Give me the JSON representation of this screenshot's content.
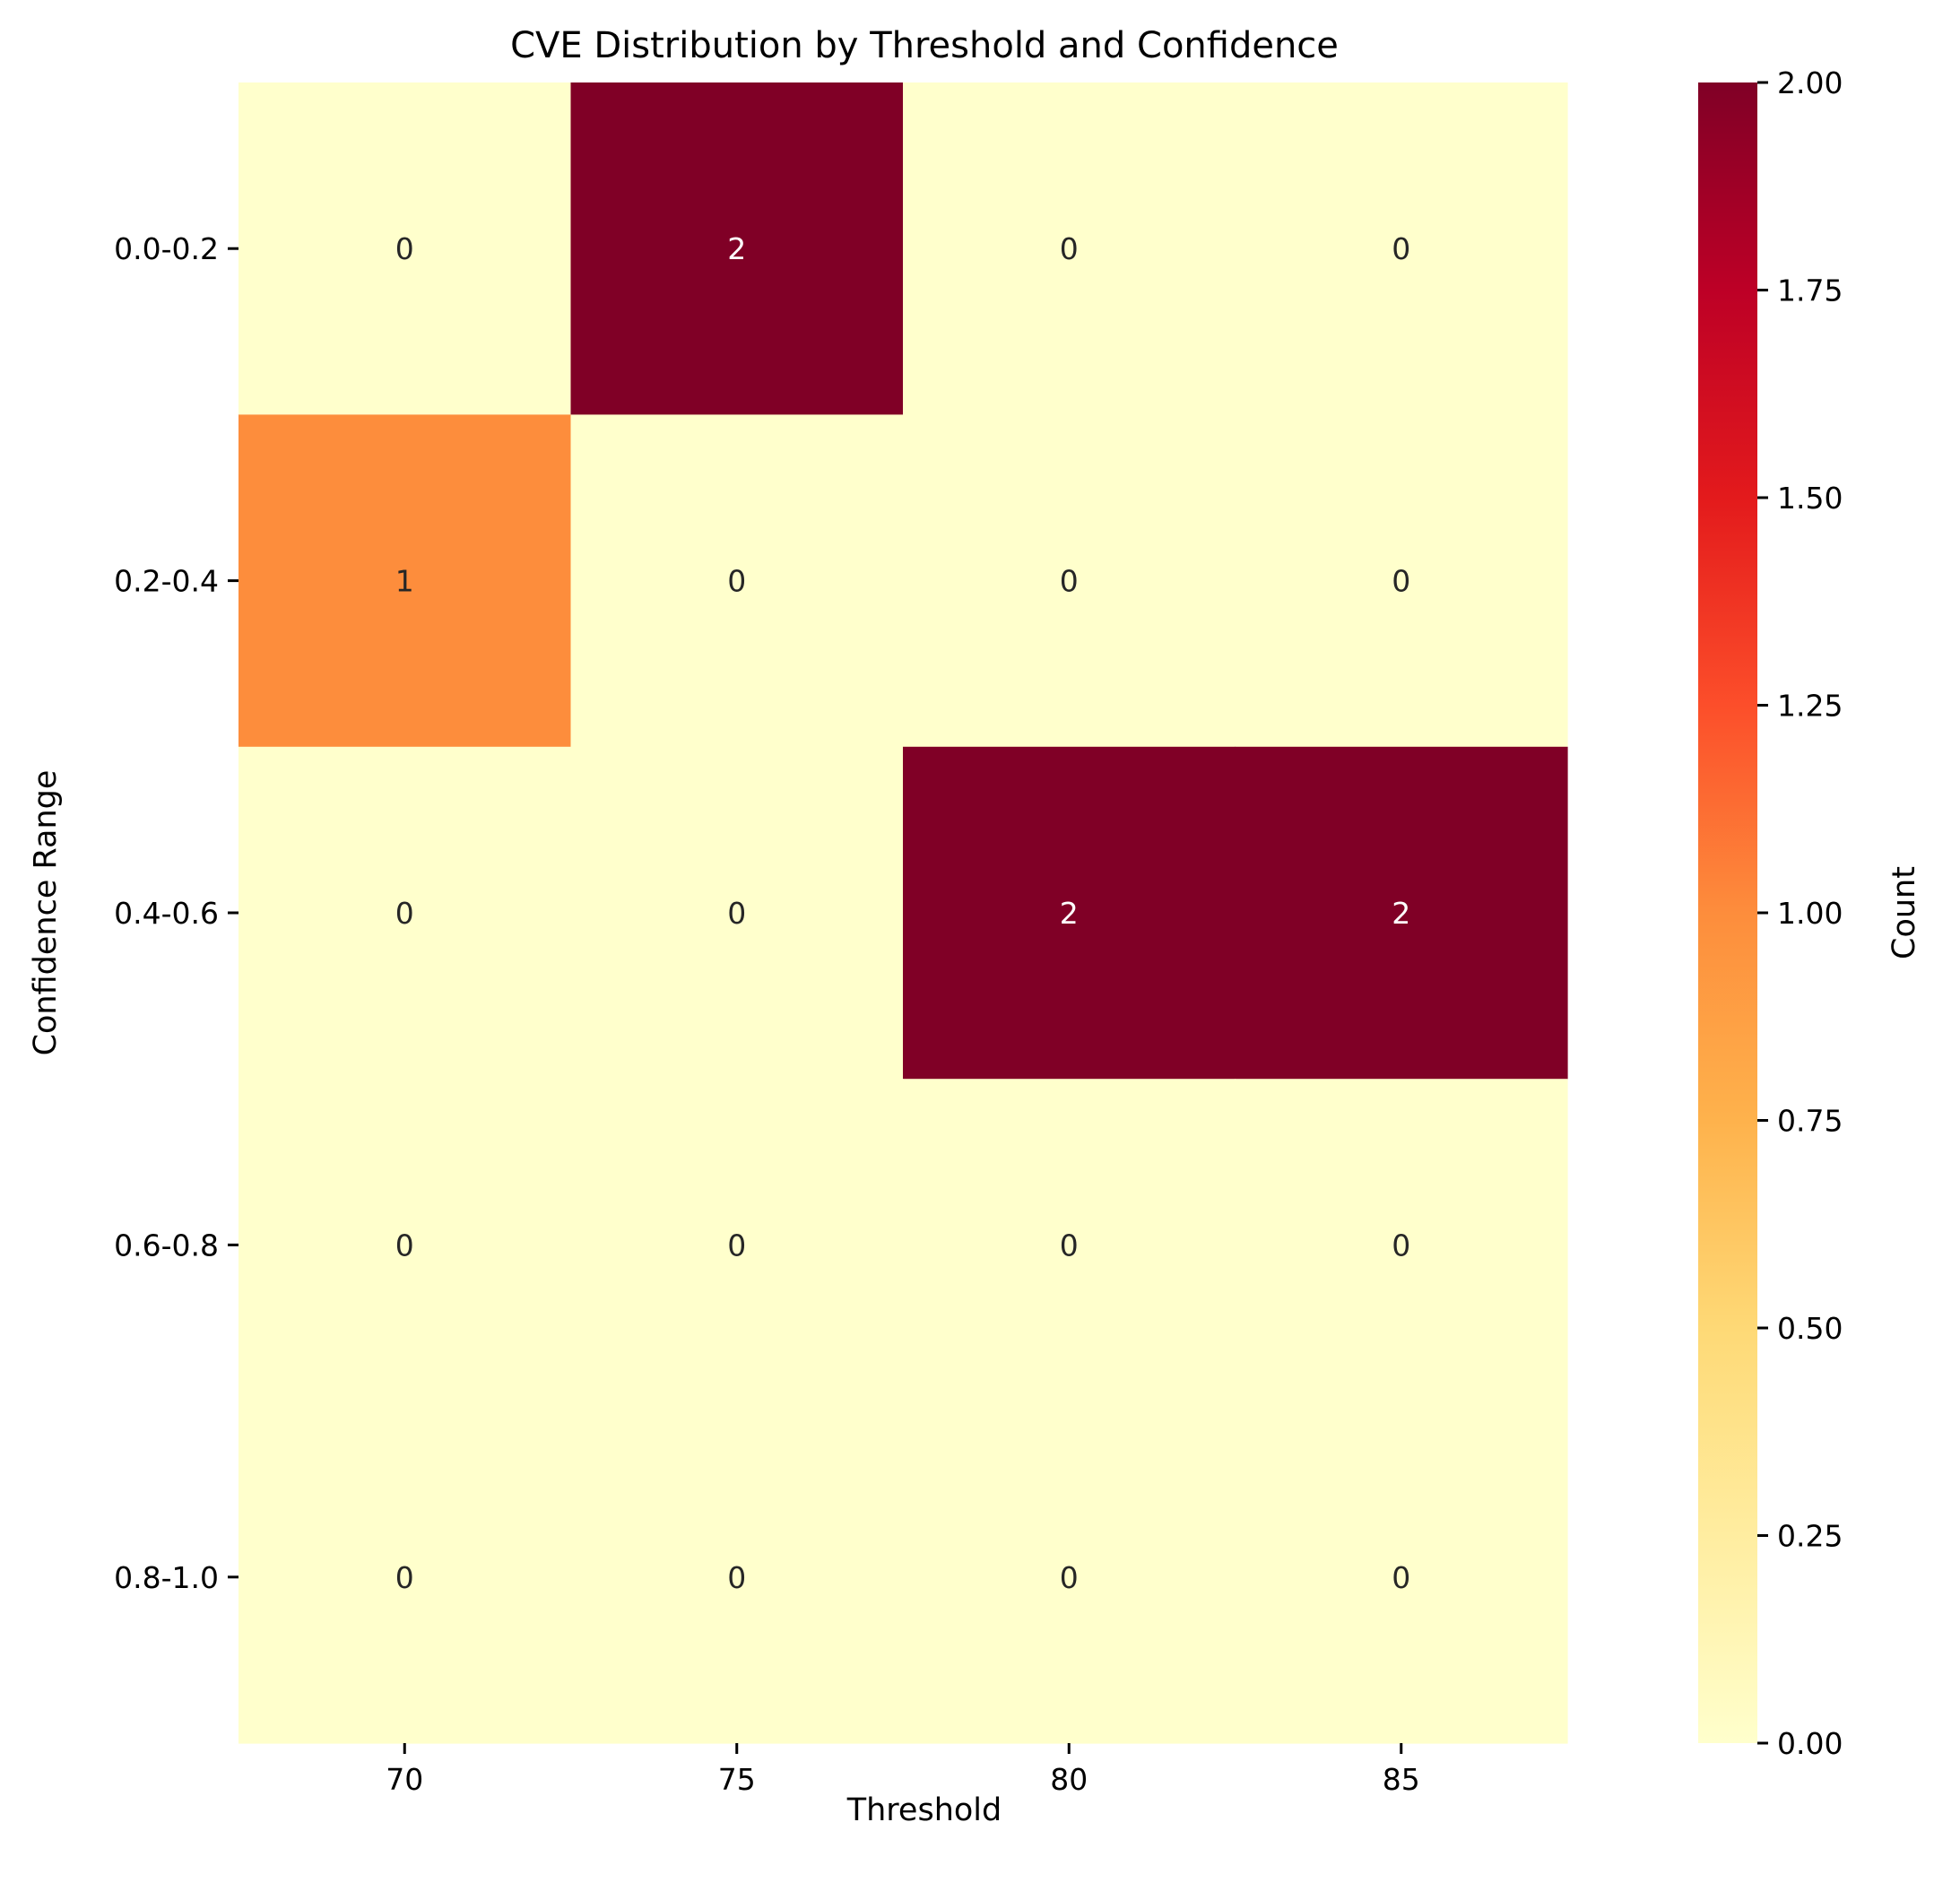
{
  "chart_data": {
    "type": "heatmap",
    "title": "CVE Distribution by Threshold and Confidence",
    "xlabel": "Threshold",
    "ylabel": "Confidence Range",
    "x_categories": [
      "70",
      "75",
      "80",
      "85"
    ],
    "y_categories": [
      "0.0-0.2",
      "0.2-0.4",
      "0.4-0.6",
      "0.6-0.8",
      "0.8-1.0"
    ],
    "values": [
      [
        0,
        2,
        0,
        0
      ],
      [
        1,
        0,
        0,
        0
      ],
      [
        0,
        0,
        2,
        2
      ],
      [
        0,
        0,
        0,
        0
      ],
      [
        0,
        0,
        0,
        0
      ]
    ],
    "colorbar": {
      "label": "Count",
      "range": [
        0,
        2
      ],
      "ticks": [
        "0.00",
        "0.25",
        "0.50",
        "0.75",
        "1.00",
        "1.25",
        "1.50",
        "1.75",
        "2.00"
      ],
      "colormap": "YlOrRd",
      "color_stops": [
        "#ffffcc",
        "#ffeda0",
        "#fed976",
        "#feb24c",
        "#fd8d3c",
        "#fc4e2a",
        "#e31a1c",
        "#bd0026",
        "#800026"
      ]
    },
    "annotation_colors": {
      "dark_text": "#262626",
      "light_text": "#ffffff"
    }
  }
}
